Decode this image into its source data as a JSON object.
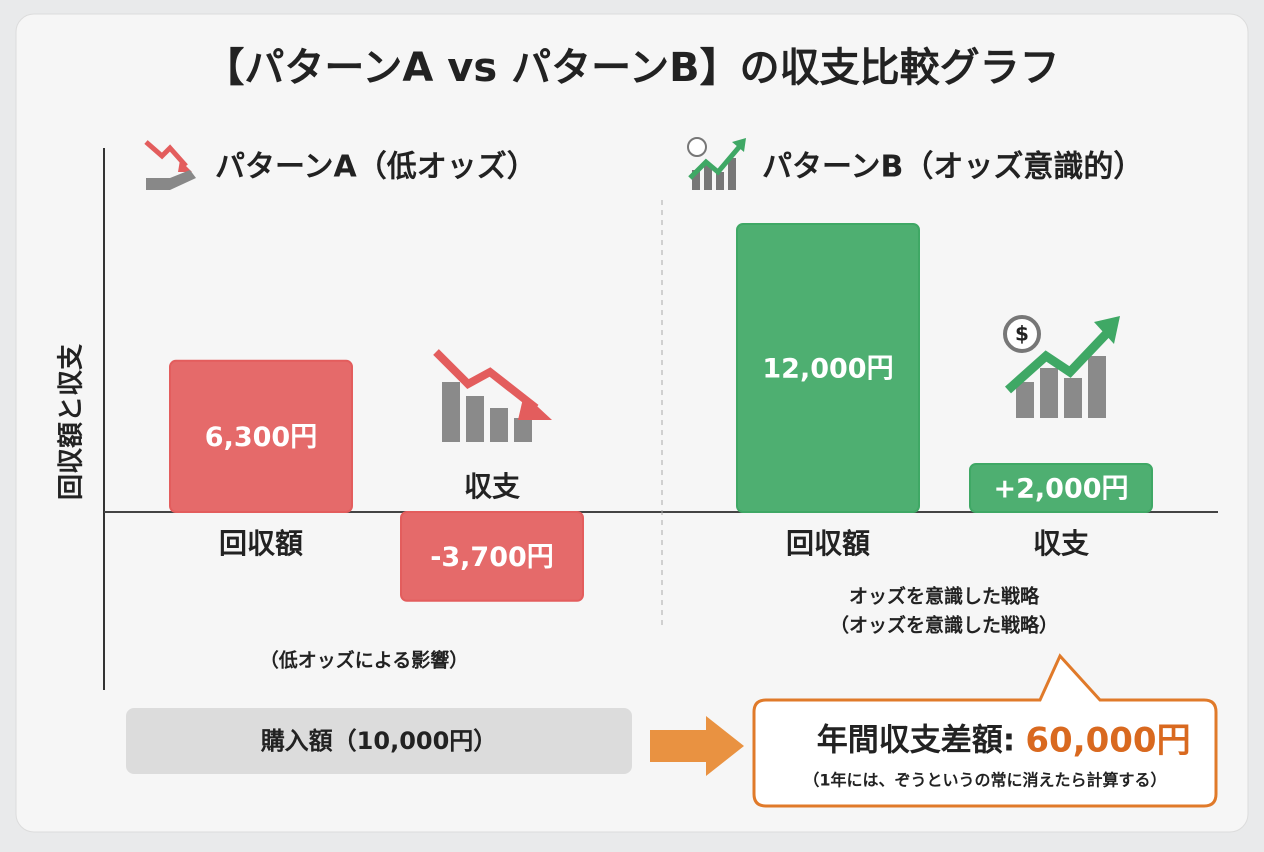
{
  "chart_data": {
    "type": "bar",
    "title": "【パターンA vs パターンB】の収支比較グラフ",
    "y_label": "回収額と収支",
    "groups": [
      {
        "title": "パターンA（低オッズ）",
        "categories": [
          "回収額",
          "収支"
        ],
        "values": [
          6300,
          -3700
        ],
        "value_labels": [
          "6,300円",
          "-3,700円"
        ],
        "color": "#e35d5d",
        "note": "（低オッズによる影響）"
      },
      {
        "title": "パターンB（オッズ意識的）",
        "categories": [
          "回収額",
          "収支"
        ],
        "values": [
          12000,
          2000
        ],
        "value_labels": [
          "12,000円",
          "+2,000円"
        ],
        "color": "#3fa865",
        "note": "オッズを意識した戦略",
        "note2": "（オッズを意識した戦略）"
      }
    ],
    "purchase_label": "購入額（10,000円）",
    "difference_label": "年間収支差額:",
    "difference_value": "60,000円",
    "difference_note": "（1年には、ぞうというの常に消えたら計算する）"
  }
}
